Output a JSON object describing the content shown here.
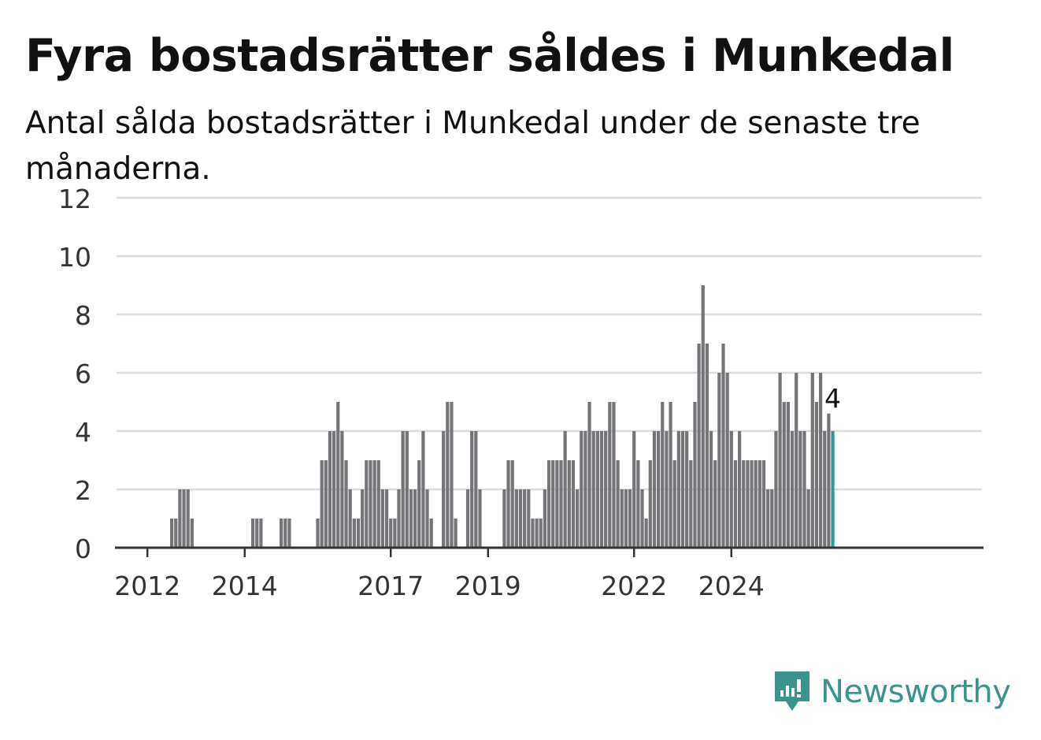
{
  "title": "Fyra bostadsrätter såldes i Munkedal",
  "subtitle": "Antal sålda bostadsrätter i Munkedal under de senaste tre månaderna.",
  "brand": {
    "name": "Newsworthy",
    "color": "#3a948c",
    "icon": "newsworthy-logo-icon"
  },
  "colors": {
    "bar": "#757478",
    "highlight": "#2a9d95",
    "grid": "#dddddd",
    "axis": "#333333",
    "text": "#333333"
  },
  "chart_data": {
    "type": "bar",
    "title": "Fyra bostadsrätter såldes i Munkedal",
    "subtitle": "Antal sålda bostadsrätter i Munkedal under de senaste tre månaderna.",
    "xlabel": "",
    "ylabel": "",
    "ylim": [
      0,
      12
    ],
    "yticks": [
      "0",
      "2",
      "4",
      "6",
      "8",
      "10",
      "12"
    ],
    "xticks": [
      "2012",
      "2014",
      "2017",
      "2019",
      "2022",
      "2024"
    ],
    "grid": true,
    "start_month": "2011-05",
    "values": [
      0,
      0,
      0,
      0,
      0,
      0,
      0,
      0,
      0,
      0,
      0,
      0,
      0,
      0,
      1,
      1,
      2,
      2,
      2,
      1,
      0,
      0,
      0,
      0,
      0,
      0,
      0,
      0,
      0,
      0,
      0,
      0,
      0,
      0,
      1,
      1,
      1,
      0,
      0,
      0,
      0,
      1,
      1,
      1,
      0,
      0,
      0,
      0,
      0,
      0,
      1,
      3,
      3,
      4,
      4,
      5,
      4,
      3,
      2,
      1,
      1,
      2,
      3,
      3,
      3,
      3,
      2,
      2,
      1,
      1,
      2,
      4,
      4,
      2,
      2,
      3,
      4,
      2,
      1,
      0,
      0,
      4,
      5,
      5,
      1,
      0,
      0,
      2,
      4,
      4,
      2,
      0,
      0,
      0,
      0,
      0,
      2,
      3,
      3,
      2,
      2,
      2,
      2,
      1,
      1,
      1,
      2,
      3,
      3,
      3,
      3,
      4,
      3,
      3,
      2,
      4,
      4,
      5,
      4,
      4,
      4,
      4,
      5,
      5,
      3,
      2,
      2,
      2,
      4,
      3,
      2,
      1,
      3,
      4,
      4,
      5,
      4,
      5,
      3,
      4,
      4,
      4,
      3,
      5,
      7,
      9,
      7,
      4,
      3,
      6,
      7,
      6,
      4,
      3,
      4,
      3,
      3,
      3,
      3,
      3,
      3,
      2,
      2,
      4,
      6,
      5,
      5,
      4,
      6,
      4,
      4,
      2,
      6,
      5,
      6,
      4,
      4.6,
      4
    ],
    "highlight_value_label": "4"
  }
}
